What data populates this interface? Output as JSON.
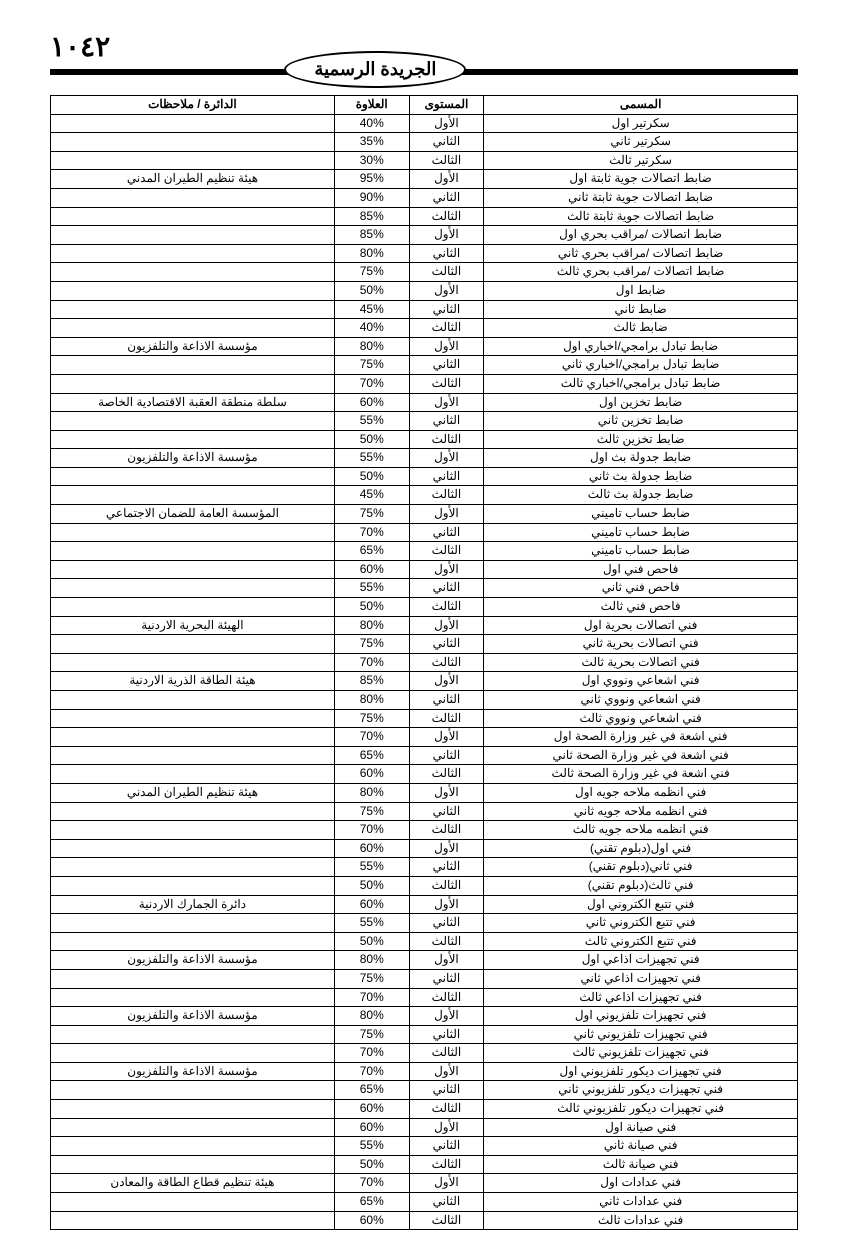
{
  "page_number": "١٠٤٢",
  "badge": "الجريدة الرسمية",
  "headers": {
    "title": "المسمى",
    "level": "المستوى",
    "pct": "العلاوة",
    "dept": "الدائرة / ملاحظات"
  },
  "rows": [
    {
      "t": "سكرتير اول",
      "l": "الأول",
      "p": "40%",
      "d": ""
    },
    {
      "t": "سكرتير ثاني",
      "l": "الثاني",
      "p": "35%",
      "d": ""
    },
    {
      "t": "سكرتير ثالث",
      "l": "الثالث",
      "p": "30%",
      "d": ""
    },
    {
      "t": "ضابط اتصالات جوية ثابتة اول",
      "l": "الأول",
      "p": "95%",
      "d": "هيئة تنظيم الطيران المدني"
    },
    {
      "t": "ضابط اتصالات جوية ثابتة ثاني",
      "l": "الثاني",
      "p": "90%",
      "d": ""
    },
    {
      "t": "ضابط اتصالات جوية ثابتة ثالث",
      "l": "الثالث",
      "p": "85%",
      "d": ""
    },
    {
      "t": "ضابط اتصالات /مراقب بحري اول",
      "l": "الأول",
      "p": "85%",
      "d": ""
    },
    {
      "t": "ضابط اتصالات /مراقب بحري ثاني",
      "l": "الثاني",
      "p": "80%",
      "d": ""
    },
    {
      "t": "ضابط اتصالات /مراقب بحري ثالث",
      "l": "الثالث",
      "p": "75%",
      "d": ""
    },
    {
      "t": "ضابط اول",
      "l": "الأول",
      "p": "50%",
      "d": ""
    },
    {
      "t": "ضابط ثاني",
      "l": "الثاني",
      "p": "45%",
      "d": ""
    },
    {
      "t": "ضابط ثالث",
      "l": "الثالث",
      "p": "40%",
      "d": ""
    },
    {
      "t": "ضابط تبادل برامجي/اخباري اول",
      "l": "الأول",
      "p": "80%",
      "d": "مؤسسة الاذاعة والتلفزيون"
    },
    {
      "t": "ضابط تبادل برامجي/اخباري ثاني",
      "l": "الثاني",
      "p": "75%",
      "d": ""
    },
    {
      "t": "ضابط تبادل برامجي/اخباري ثالث",
      "l": "الثالث",
      "p": "70%",
      "d": ""
    },
    {
      "t": "ضابط تخزين اول",
      "l": "الأول",
      "p": "60%",
      "d": "سلطة منطقة العقبة الاقتصادية الخاصة"
    },
    {
      "t": "ضابط تخزين ثاني",
      "l": "الثاني",
      "p": "55%",
      "d": ""
    },
    {
      "t": "ضابط تخزين ثالث",
      "l": "الثالث",
      "p": "50%",
      "d": ""
    },
    {
      "t": "ضابط جدولة بث اول",
      "l": "الأول",
      "p": "55%",
      "d": "مؤسسة الاذاعة والتلفزيون"
    },
    {
      "t": "ضابط جدولة بث ثاني",
      "l": "الثاني",
      "p": "50%",
      "d": ""
    },
    {
      "t": "ضابط جدولة بث ثالث",
      "l": "الثالث",
      "p": "45%",
      "d": ""
    },
    {
      "t": "ضابط حساب تاميني",
      "l": "الأول",
      "p": "75%",
      "d": "المؤسسة العامة للضمان الاجتماعي"
    },
    {
      "t": "ضابط حساب تاميني",
      "l": "الثاني",
      "p": "70%",
      "d": ""
    },
    {
      "t": "ضابط حساب تاميني",
      "l": "الثالث",
      "p": "65%",
      "d": ""
    },
    {
      "t": "فاحص فني اول",
      "l": "الأول",
      "p": "60%",
      "d": ""
    },
    {
      "t": "فاحص فني ثاني",
      "l": "الثاني",
      "p": "55%",
      "d": ""
    },
    {
      "t": "فاحص فني ثالث",
      "l": "الثالث",
      "p": "50%",
      "d": ""
    },
    {
      "t": "فني اتصالات بحرية اول",
      "l": "الأول",
      "p": "80%",
      "d": "الهيئة البحرية الاردنية"
    },
    {
      "t": "فني اتصالات بحرية ثاني",
      "l": "الثاني",
      "p": "75%",
      "d": ""
    },
    {
      "t": "فني اتصالات بحرية ثالث",
      "l": "الثالث",
      "p": "70%",
      "d": ""
    },
    {
      "t": "فني اشعاعي ونووي اول",
      "l": "الأول",
      "p": "85%",
      "d": "هيئة الطاقة الذرية الاردنية"
    },
    {
      "t": "فني اشعاعي ونووي ثاني",
      "l": "الثاني",
      "p": "80%",
      "d": ""
    },
    {
      "t": "فني اشعاعي ونووي ثالث",
      "l": "الثالث",
      "p": "75%",
      "d": ""
    },
    {
      "t": "فني اشعة في غير وزارة الصحة اول",
      "l": "الأول",
      "p": "70%",
      "d": ""
    },
    {
      "t": "فني اشعة في غير وزارة الصحة ثاني",
      "l": "الثاني",
      "p": "65%",
      "d": ""
    },
    {
      "t": "فني اشعة في غير وزارة الصحة ثالث",
      "l": "الثالث",
      "p": "60%",
      "d": ""
    },
    {
      "t": "فني انظمه ملاحه جويه اول",
      "l": "الأول",
      "p": "80%",
      "d": "هيئة تنظيم الطيران المدني"
    },
    {
      "t": "فني انظمه ملاحه جويه ثاني",
      "l": "الثاني",
      "p": "75%",
      "d": ""
    },
    {
      "t": "فني انظمه ملاحه جويه ثالث",
      "l": "الثالث",
      "p": "70%",
      "d": ""
    },
    {
      "t": "فني اول(دبلوم تقني)",
      "l": "الأول",
      "p": "60%",
      "d": ""
    },
    {
      "t": "فني ثاني(دبلوم تقني)",
      "l": "الثاني",
      "p": "55%",
      "d": ""
    },
    {
      "t": "فني ثالث(دبلوم تقني)",
      "l": "الثالث",
      "p": "50%",
      "d": ""
    },
    {
      "t": "فني تتبع الكتروني اول",
      "l": "الأول",
      "p": "60%",
      "d": "دائرة الجمارك الاردنية"
    },
    {
      "t": "فني تتبع الكتروني ثاني",
      "l": "الثاني",
      "p": "55%",
      "d": ""
    },
    {
      "t": "فني تتبع الكتروني ثالث",
      "l": "الثالث",
      "p": "50%",
      "d": ""
    },
    {
      "t": "فني تجهيزات اذاعي اول",
      "l": "الأول",
      "p": "80%",
      "d": "مؤسسة الاذاعة والتلفزيون"
    },
    {
      "t": "فني تجهيزات اذاعي ثاني",
      "l": "الثاني",
      "p": "75%",
      "d": ""
    },
    {
      "t": "فني تجهيزات اذاعي ثالث",
      "l": "الثالث",
      "p": "70%",
      "d": ""
    },
    {
      "t": "فني تجهيزات تلفزيوني اول",
      "l": "الأول",
      "p": "80%",
      "d": "مؤسسة الاذاعة والتلفزيون"
    },
    {
      "t": "فني تجهيزات تلفزيوني ثاني",
      "l": "الثاني",
      "p": "75%",
      "d": ""
    },
    {
      "t": "فني تجهيزات تلفزيوني ثالث",
      "l": "الثالث",
      "p": "70%",
      "d": ""
    },
    {
      "t": "فني تجهيزات ديكور تلفزيوني اول",
      "l": "الأول",
      "p": "70%",
      "d": "مؤسسة الاذاعة والتلفزيون"
    },
    {
      "t": "فني تجهيزات ديكور تلفزيوني ثاني",
      "l": "الثاني",
      "p": "65%",
      "d": ""
    },
    {
      "t": "فني تجهيزات ديكور تلفزيوني ثالث",
      "l": "الثالث",
      "p": "60%",
      "d": ""
    },
    {
      "t": "فني صيانة اول",
      "l": "الأول",
      "p": "60%",
      "d": ""
    },
    {
      "t": "فني صيانة ثاني",
      "l": "الثاني",
      "p": "55%",
      "d": ""
    },
    {
      "t": "فني صيانة ثالث",
      "l": "الثالث",
      "p": "50%",
      "d": ""
    },
    {
      "t": "فني عدادات اول",
      "l": "الأول",
      "p": "70%",
      "d": "هيئة تنظيم قطاع الطاقة والمعادن"
    },
    {
      "t": "فني عدادات ثاني",
      "l": "الثاني",
      "p": "65%",
      "d": ""
    },
    {
      "t": "فني عدادات ثالث",
      "l": "الثالث",
      "p": "60%",
      "d": ""
    }
  ]
}
